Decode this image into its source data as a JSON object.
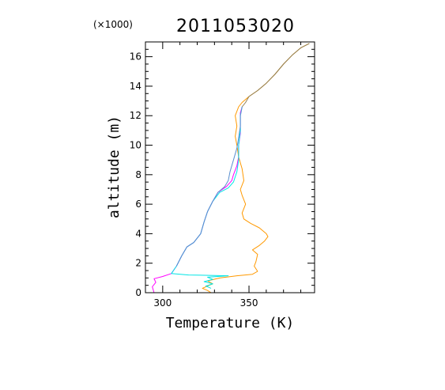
{
  "chart_data": {
    "type": "line",
    "title": "2011053020",
    "y_multiplier_label": "(×1000)",
    "xlabel": "Temperature (K)",
    "ylabel": "altitude (m)",
    "xlim": [
      290,
      388
    ],
    "ylim": [
      0,
      17
    ],
    "x_ticks": [
      300,
      350
    ],
    "y_ticks": [
      0,
      2,
      4,
      6,
      8,
      10,
      12,
      14,
      16
    ],
    "grid": false,
    "series": [
      {
        "color": "#ff9900",
        "points": [
          [
            328,
            0.0
          ],
          [
            326,
            0.15
          ],
          [
            323,
            0.3
          ],
          [
            326,
            0.45
          ],
          [
            329,
            0.6
          ],
          [
            326,
            0.8
          ],
          [
            333,
            1.0
          ],
          [
            343,
            1.15
          ],
          [
            352,
            1.25
          ],
          [
            355,
            1.45
          ],
          [
            353,
            1.8
          ],
          [
            354,
            2.1
          ],
          [
            355,
            2.6
          ],
          [
            352,
            2.9
          ],
          [
            356,
            3.2
          ],
          [
            359,
            3.5
          ],
          [
            361,
            3.8
          ],
          [
            360,
            4.0
          ],
          [
            356,
            4.4
          ],
          [
            351,
            4.7
          ],
          [
            347,
            5.0
          ],
          [
            346,
            5.4
          ],
          [
            348,
            6.0
          ],
          [
            346,
            6.6
          ],
          [
            345,
            7.0
          ],
          [
            347,
            7.6
          ],
          [
            346,
            8.4
          ],
          [
            344,
            9.2
          ],
          [
            343,
            10.0
          ],
          [
            342,
            10.6
          ],
          [
            343,
            11.3
          ],
          [
            342,
            12.0
          ],
          [
            344,
            12.6
          ],
          [
            346,
            12.9
          ],
          [
            350,
            13.3
          ],
          [
            355,
            13.7
          ],
          [
            360,
            14.2
          ],
          [
            365,
            14.8
          ],
          [
            370,
            15.5
          ],
          [
            375,
            16.1
          ],
          [
            380,
            16.6
          ],
          [
            385,
            16.9
          ]
        ]
      },
      {
        "color": "#ff00ff",
        "points": [
          [
            295,
            0.0
          ],
          [
            294,
            0.4
          ],
          [
            296,
            0.7
          ],
          [
            295,
            0.95
          ],
          [
            300,
            1.1
          ],
          [
            305,
            1.3
          ],
          [
            308,
            1.8
          ],
          [
            311,
            2.5
          ],
          [
            314,
            3.1
          ],
          [
            318,
            3.4
          ],
          [
            322,
            4.0
          ],
          [
            324,
            4.8
          ],
          [
            326,
            5.5
          ],
          [
            329,
            6.2
          ],
          [
            332,
            6.8
          ],
          [
            337,
            7.2
          ],
          [
            340,
            7.6
          ],
          [
            341,
            8.0
          ],
          [
            343,
            8.6
          ],
          [
            344,
            9.2
          ],
          [
            344,
            10.0
          ],
          [
            345,
            10.8
          ],
          [
            345,
            11.6
          ],
          [
            345,
            12.2
          ],
          [
            346,
            12.6
          ]
        ]
      },
      {
        "color": "#00e5e5",
        "points": [
          [
            328,
            0.3
          ],
          [
            325,
            0.45
          ],
          [
            329,
            0.6
          ],
          [
            324,
            0.75
          ],
          [
            329,
            0.9
          ],
          [
            326,
            1.05
          ],
          [
            338,
            1.15
          ],
          [
            315,
            1.2
          ],
          [
            305,
            1.3
          ],
          [
            308,
            1.8
          ],
          [
            311,
            2.5
          ],
          [
            314,
            3.1
          ],
          [
            318,
            3.4
          ],
          [
            322,
            4.0
          ],
          [
            324,
            4.8
          ],
          [
            326,
            5.5
          ],
          [
            329,
            6.2
          ],
          [
            333,
            6.8
          ],
          [
            338,
            7.1
          ],
          [
            341,
            7.5
          ],
          [
            343,
            8.2
          ],
          [
            344,
            9.0
          ],
          [
            344,
            10.0
          ],
          [
            345,
            11.0
          ],
          [
            345,
            12.0
          ],
          [
            346,
            12.6
          ]
        ]
      },
      {
        "color": "#5a8fcf",
        "points": [
          [
            308,
            1.8
          ],
          [
            311,
            2.5
          ],
          [
            314,
            3.1
          ],
          [
            318,
            3.4
          ],
          [
            322,
            4.0
          ],
          [
            324,
            4.8
          ],
          [
            326,
            5.5
          ],
          [
            329,
            6.2
          ],
          [
            332,
            6.8
          ],
          [
            336,
            7.2
          ],
          [
            338,
            7.6
          ],
          [
            339,
            8.2
          ],
          [
            341,
            9.0
          ],
          [
            343,
            9.8
          ],
          [
            344,
            10.5
          ],
          [
            345,
            11.3
          ],
          [
            345,
            12.0
          ],
          [
            346,
            12.6
          ]
        ]
      },
      {
        "color": "#8f7f55",
        "points": [
          [
            346,
            12.6
          ],
          [
            348,
            12.9
          ],
          [
            350,
            13.3
          ],
          [
            355,
            13.7
          ],
          [
            360,
            14.2
          ],
          [
            365,
            14.8
          ],
          [
            370,
            15.5
          ],
          [
            375,
            16.1
          ],
          [
            380,
            16.6
          ],
          [
            385,
            16.9
          ]
        ]
      }
    ]
  }
}
